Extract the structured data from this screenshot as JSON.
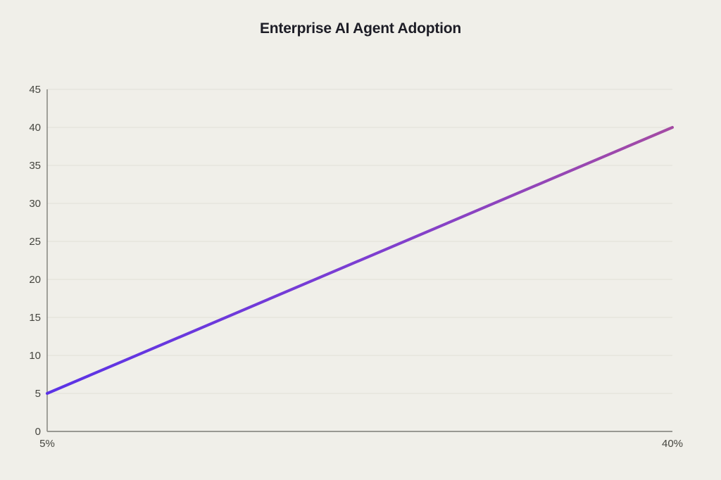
{
  "page": {
    "background": "#f0efe9"
  },
  "chart_data": {
    "type": "line",
    "title": "Enterprise AI Agent Adoption",
    "xlabel": "",
    "ylabel": "",
    "x": [
      5,
      40
    ],
    "x_tick_labels": [
      "5%",
      "40%"
    ],
    "xlim": [
      5,
      40
    ],
    "ylim": [
      0,
      45
    ],
    "y_ticks": [
      0,
      5,
      10,
      15,
      20,
      25,
      30,
      35,
      40,
      45
    ],
    "grid": "horizontal",
    "legend": "none",
    "series": [
      {
        "name": "Enterprise AI Agent Adoption",
        "values": [
          5,
          40
        ]
      }
    ],
    "line_gradient": [
      "#5b33e6",
      "#7c3ed2",
      "#a44ba4"
    ],
    "colors": {
      "background": "#f0efe9",
      "gridline": "#e3e2dc",
      "axis": "#8b8b85",
      "tick_label": "#45453f",
      "title": "#1d1d26"
    }
  }
}
